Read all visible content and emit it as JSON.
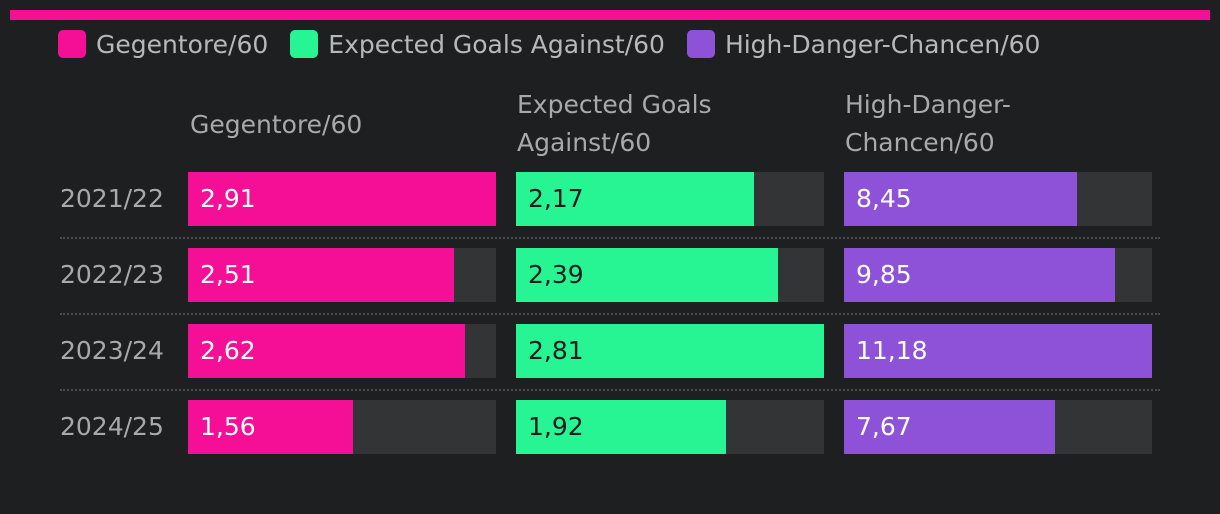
{
  "colors": {
    "accent": "#f50f96",
    "gegentore": "#f50f96",
    "xga": "#27f594",
    "hdc": "#8e52d8",
    "track": "#333436"
  },
  "legend": {
    "items": [
      {
        "label": "Gegentore/60",
        "color": "#f50f96"
      },
      {
        "label": "Expected Goals Against/60",
        "color": "#27f594"
      },
      {
        "label": "High-Danger-Chancen/60",
        "color": "#8e52d8"
      }
    ]
  },
  "headers": {
    "col0_line1": "Gegentore/60",
    "col1_line1": "Expected Goals",
    "col1_line2": "Against/60",
    "col2_line1": "High-Danger-",
    "col2_line2": "Chancen/60"
  },
  "chart_data": {
    "type": "bar",
    "categories": [
      "2021/22",
      "2022/23",
      "2023/24",
      "2024/25"
    ],
    "series": [
      {
        "name": "Gegentore/60",
        "values": [
          2.91,
          2.51,
          2.62,
          1.56
        ],
        "labels": [
          "2,91",
          "2,51",
          "2,62",
          "1,56"
        ],
        "max": 2.91
      },
      {
        "name": "Expected Goals Against/60",
        "values": [
          2.17,
          2.39,
          2.81,
          1.92
        ],
        "labels": [
          "2,17",
          "2,39",
          "2,81",
          "1,92"
        ],
        "max": 2.81
      },
      {
        "name": "High-Danger-Chancen/60",
        "values": [
          8.45,
          9.85,
          11.18,
          7.67
        ],
        "labels": [
          "8,45",
          "9,85",
          "11,18",
          "7,67"
        ],
        "max": 11.18
      }
    ]
  }
}
